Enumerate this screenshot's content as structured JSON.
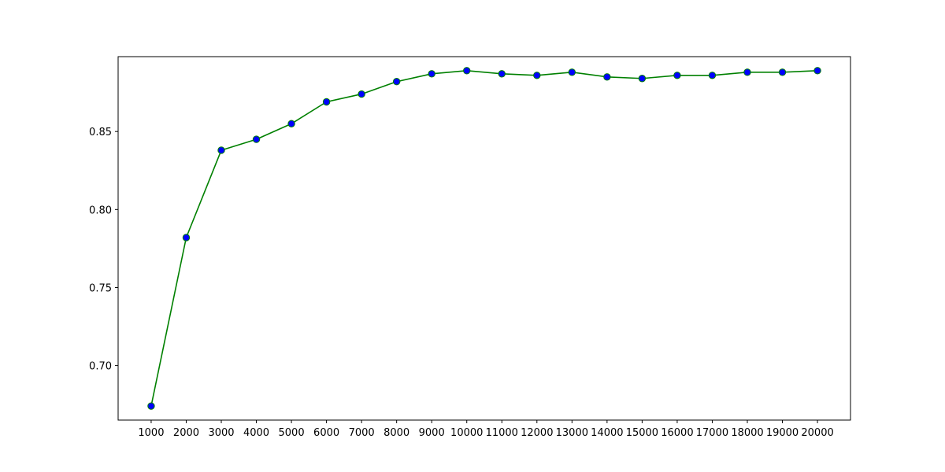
{
  "chart_data": {
    "type": "line",
    "title": "",
    "xlabel": "",
    "ylabel": "",
    "x": [
      1000,
      2000,
      3000,
      4000,
      5000,
      6000,
      7000,
      8000,
      9000,
      10000,
      11000,
      12000,
      13000,
      14000,
      15000,
      16000,
      17000,
      18000,
      19000,
      20000
    ],
    "series": [
      {
        "values": [
          0.674,
          0.782,
          0.838,
          0.845,
          0.855,
          0.869,
          0.874,
          0.882,
          0.887,
          0.889,
          0.887,
          0.886,
          0.888,
          0.885,
          0.884,
          0.886,
          0.886,
          0.888,
          0.888,
          0.889
        ],
        "line_color": "#008000",
        "marker_color": "#0000ff",
        "marker_edge_color": "#008000",
        "marker": "circle"
      }
    ],
    "ylim": [
      0.665,
      0.898
    ],
    "xticks": [
      "1000",
      "2000",
      "3000",
      "4000",
      "5000",
      "6000",
      "7000",
      "8000",
      "9000",
      "10000",
      "11000",
      "12000",
      "13000",
      "14000",
      "15000",
      "16000",
      "17000",
      "18000",
      "19000",
      "20000"
    ],
    "yticks": [
      {
        "value": 0.7,
        "label": "0.70"
      },
      {
        "value": 0.75,
        "label": "0.75"
      },
      {
        "value": 0.8,
        "label": "0.80"
      },
      {
        "value": 0.85,
        "label": "0.85"
      }
    ],
    "grid": false,
    "legend": "none"
  }
}
